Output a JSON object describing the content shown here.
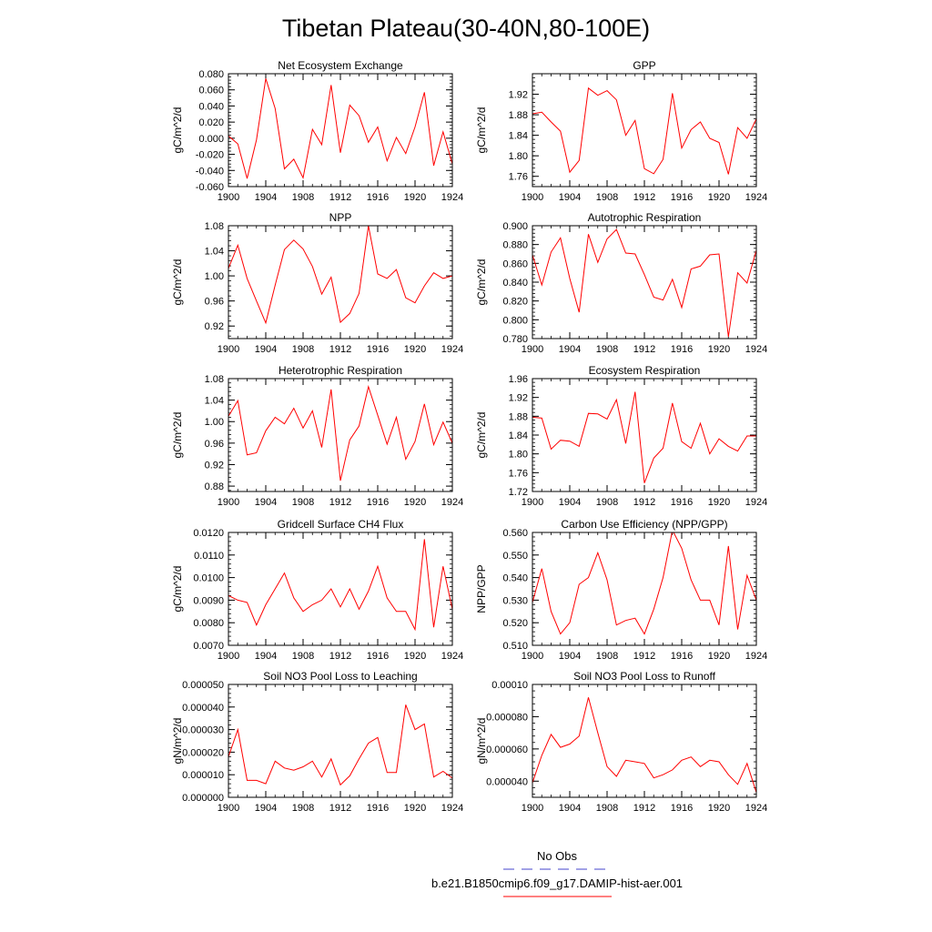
{
  "figure": {
    "title": "Tibetan Plateau(30-40N,80-100E)",
    "series_color": "#ff0000",
    "obs_color": "#4444cc",
    "legend": {
      "obs_label": "No Obs",
      "model_label": "b.e21.B1850cmip6.f09_g17.DAMIP-hist-aer.001"
    }
  },
  "chart_data": [
    {
      "type": "line",
      "title": "Net Ecosystem Exchange",
      "ylabel": "gC/m^2/d",
      "x": [
        1900,
        1901,
        1902,
        1903,
        1904,
        1905,
        1906,
        1907,
        1908,
        1909,
        1910,
        1911,
        1912,
        1913,
        1914,
        1915,
        1916,
        1917,
        1918,
        1919,
        1920,
        1921,
        1922,
        1923,
        1924
      ],
      "values": [
        0.003,
        -0.007,
        -0.05,
        -0.002,
        0.074,
        0.037,
        -0.038,
        -0.026,
        -0.049,
        0.011,
        -0.008,
        0.066,
        -0.018,
        0.041,
        0.028,
        -0.005,
        0.014,
        -0.028,
        0.001,
        -0.019,
        0.014,
        0.057,
        -0.034,
        0.008,
        -0.032
      ],
      "xlim": [
        1900,
        1924
      ],
      "ylim": [
        -0.06,
        0.08
      ],
      "xticks": [
        1900,
        1904,
        1908,
        1912,
        1916,
        1920,
        1924
      ],
      "yticks": [
        -0.06,
        -0.04,
        -0.02,
        0,
        0.02,
        0.04,
        0.06,
        0.08
      ],
      "yticklabels": [
        "-0.060",
        "-0.040",
        "-0.020",
        "0.000",
        "0.020",
        "0.040",
        "0.060",
        "0.080"
      ]
    },
    {
      "type": "line",
      "title": "GPP",
      "ylabel": "gC/m^2/d",
      "x": [
        1900,
        1901,
        1902,
        1903,
        1904,
        1905,
        1906,
        1907,
        1908,
        1909,
        1910,
        1911,
        1912,
        1913,
        1914,
        1915,
        1916,
        1917,
        1918,
        1919,
        1920,
        1921,
        1922,
        1923,
        1924
      ],
      "values": [
        1.882,
        1.885,
        1.866,
        1.848,
        1.768,
        1.791,
        1.932,
        1.918,
        1.927,
        1.909,
        1.84,
        1.869,
        1.775,
        1.765,
        1.793,
        1.922,
        1.815,
        1.851,
        1.866,
        1.834,
        1.826,
        1.764,
        1.855,
        1.834,
        1.872
      ],
      "xlim": [
        1900,
        1924
      ],
      "ylim": [
        1.74,
        1.96
      ],
      "xticks": [
        1900,
        1904,
        1908,
        1912,
        1916,
        1920,
        1924
      ],
      "yticks": [
        1.76,
        1.8,
        1.84,
        1.88,
        1.92
      ],
      "yticklabels": [
        "1.76",
        "1.80",
        "1.84",
        "1.88",
        "1.92"
      ]
    },
    {
      "type": "line",
      "title": "NPP",
      "ylabel": "gC/m^2/d",
      "x": [
        1900,
        1901,
        1902,
        1903,
        1904,
        1905,
        1906,
        1907,
        1908,
        1909,
        1910,
        1911,
        1912,
        1913,
        1914,
        1915,
        1916,
        1917,
        1918,
        1919,
        1920,
        1921,
        1922,
        1923,
        1924
      ],
      "values": [
        1.012,
        1.049,
        0.996,
        0.96,
        0.925,
        0.985,
        1.042,
        1.057,
        1.043,
        1.015,
        0.971,
        0.998,
        0.926,
        0.94,
        0.972,
        1.08,
        1.003,
        0.996,
        1.01,
        0.965,
        0.957,
        0.984,
        1.005,
        0.996,
        1.0
      ],
      "xlim": [
        1900,
        1924
      ],
      "ylim": [
        0.9,
        1.08
      ],
      "xticks": [
        1900,
        1904,
        1908,
        1912,
        1916,
        1920,
        1924
      ],
      "yticks": [
        0.92,
        0.96,
        1.0,
        1.04,
        1.08
      ],
      "yticklabels": [
        "0.92",
        "0.96",
        "1.00",
        "1.04",
        "1.08"
      ]
    },
    {
      "type": "line",
      "title": "Autotrophic Respiration",
      "ylabel": "gC/m^2/d",
      "x": [
        1900,
        1901,
        1902,
        1903,
        1904,
        1905,
        1906,
        1907,
        1908,
        1909,
        1910,
        1911,
        1912,
        1913,
        1914,
        1915,
        1916,
        1917,
        1918,
        1919,
        1920,
        1921,
        1922,
        1923,
        1924
      ],
      "values": [
        0.869,
        0.837,
        0.872,
        0.887,
        0.844,
        0.808,
        0.891,
        0.861,
        0.886,
        0.896,
        0.871,
        0.87,
        0.848,
        0.824,
        0.821,
        0.843,
        0.813,
        0.854,
        0.857,
        0.869,
        0.87,
        0.782,
        0.85,
        0.839,
        0.874
      ],
      "xlim": [
        1900,
        1924
      ],
      "ylim": [
        0.78,
        0.9
      ],
      "xticks": [
        1900,
        1904,
        1908,
        1912,
        1916,
        1920,
        1924
      ],
      "yticks": [
        0.78,
        0.8,
        0.82,
        0.84,
        0.86,
        0.88,
        0.9
      ],
      "yticklabels": [
        "0.780",
        "0.800",
        "0.820",
        "0.840",
        "0.860",
        "0.880",
        "0.900"
      ]
    },
    {
      "type": "line",
      "title": "Heterotrophic Respiration",
      "ylabel": "gC/m^2/d",
      "x": [
        1900,
        1901,
        1902,
        1903,
        1904,
        1905,
        1906,
        1907,
        1908,
        1909,
        1910,
        1911,
        1912,
        1913,
        1914,
        1915,
        1916,
        1917,
        1918,
        1919,
        1920,
        1921,
        1922,
        1923,
        1924
      ],
      "values": [
        1.01,
        1.039,
        0.938,
        0.942,
        0.983,
        1.008,
        0.996,
        1.025,
        0.988,
        1.02,
        0.952,
        1.06,
        0.89,
        0.966,
        0.992,
        1.065,
        1.012,
        0.958,
        1.008,
        0.93,
        0.963,
        1.033,
        0.957,
        0.999,
        0.96
      ],
      "xlim": [
        1900,
        1924
      ],
      "ylim": [
        0.87,
        1.08
      ],
      "xticks": [
        1900,
        1904,
        1908,
        1912,
        1916,
        1920,
        1924
      ],
      "yticks": [
        0.88,
        0.92,
        0.96,
        1.0,
        1.04,
        1.08
      ],
      "yticklabels": [
        "0.88",
        "0.92",
        "0.96",
        "1.00",
        "1.04",
        "1.08"
      ]
    },
    {
      "type": "line",
      "title": "Ecosystem Respiration",
      "ylabel": "gC/m^2/d",
      "x": [
        1900,
        1901,
        1902,
        1903,
        1904,
        1905,
        1906,
        1907,
        1908,
        1909,
        1910,
        1911,
        1912,
        1913,
        1914,
        1915,
        1916,
        1917,
        1918,
        1919,
        1920,
        1921,
        1922,
        1923,
        1924
      ],
      "values": [
        1.878,
        1.876,
        1.81,
        1.829,
        1.827,
        1.816,
        1.886,
        1.885,
        1.874,
        1.915,
        1.822,
        1.932,
        1.738,
        1.791,
        1.812,
        1.908,
        1.826,
        1.812,
        1.865,
        1.8,
        1.832,
        1.816,
        1.806,
        1.838,
        1.838
      ],
      "xlim": [
        1900,
        1924
      ],
      "ylim": [
        1.72,
        1.96
      ],
      "xticks": [
        1900,
        1904,
        1908,
        1912,
        1916,
        1920,
        1924
      ],
      "yticks": [
        1.72,
        1.76,
        1.8,
        1.84,
        1.88,
        1.92,
        1.96
      ],
      "yticklabels": [
        "1.72",
        "1.76",
        "1.80",
        "1.84",
        "1.88",
        "1.92",
        "1.96"
      ]
    },
    {
      "type": "line",
      "title": "Gridcell Surface CH4 Flux",
      "ylabel": "gC/m^2/d",
      "x": [
        1900,
        1901,
        1902,
        1903,
        1904,
        1905,
        1906,
        1907,
        1908,
        1909,
        1910,
        1911,
        1912,
        1913,
        1914,
        1915,
        1916,
        1917,
        1918,
        1919,
        1920,
        1921,
        1922,
        1923,
        1924
      ],
      "values": [
        0.0092,
        0.009,
        0.0089,
        0.0079,
        0.0088,
        0.0095,
        0.0102,
        0.0091,
        0.0085,
        0.0088,
        0.009,
        0.0095,
        0.0087,
        0.0095,
        0.0086,
        0.0094,
        0.0105,
        0.0091,
        0.0085,
        0.0085,
        0.0077,
        0.0117,
        0.0078,
        0.0105,
        0.0086
      ],
      "xlim": [
        1900,
        1924
      ],
      "ylim": [
        0.007,
        0.012
      ],
      "xticks": [
        1900,
        1904,
        1908,
        1912,
        1916,
        1920,
        1924
      ],
      "yticks": [
        0.007,
        0.008,
        0.009,
        0.01,
        0.011,
        0.012
      ],
      "yticklabels": [
        "0.0070",
        "0.0080",
        "0.0090",
        "0.0100",
        "0.0110",
        "0.0120"
      ]
    },
    {
      "type": "line",
      "title": "Carbon Use Efficiency (NPP/GPP)",
      "ylabel": "NPP/GPP",
      "x": [
        1900,
        1901,
        1902,
        1903,
        1904,
        1905,
        1906,
        1907,
        1908,
        1909,
        1910,
        1911,
        1912,
        1913,
        1914,
        1915,
        1916,
        1917,
        1918,
        1919,
        1920,
        1921,
        1922,
        1923,
        1924
      ],
      "values": [
        0.529,
        0.544,
        0.525,
        0.515,
        0.52,
        0.537,
        0.54,
        0.551,
        0.539,
        0.519,
        0.521,
        0.522,
        0.515,
        0.526,
        0.54,
        0.561,
        0.553,
        0.539,
        0.53,
        0.53,
        0.519,
        0.554,
        0.517,
        0.541,
        0.53
      ],
      "xlim": [
        1900,
        1924
      ],
      "ylim": [
        0.51,
        0.56
      ],
      "xticks": [
        1900,
        1904,
        1908,
        1912,
        1916,
        1920,
        1924
      ],
      "yticks": [
        0.51,
        0.52,
        0.53,
        0.54,
        0.55,
        0.56
      ],
      "yticklabels": [
        "0.510",
        "0.520",
        "0.530",
        "0.540",
        "0.550",
        "0.560"
      ]
    },
    {
      "type": "line",
      "title": "Soil NO3 Pool Loss to Leaching",
      "ylabel": "gN/m^2/d",
      "x": [
        1900,
        1901,
        1902,
        1903,
        1904,
        1905,
        1906,
        1907,
        1908,
        1909,
        1910,
        1911,
        1912,
        1913,
        1914,
        1915,
        1916,
        1917,
        1918,
        1919,
        1920,
        1921,
        1922,
        1923,
        1924
      ],
      "values": [
        1.8e-05,
        3e-05,
        7.5e-06,
        7.5e-06,
        6e-06,
        1.6e-05,
        1.3e-05,
        1.2e-05,
        1.35e-05,
        1.6e-05,
        9e-06,
        1.7e-05,
        5.5e-06,
        9.5e-06,
        1.7e-05,
        2.4e-05,
        2.65e-05,
        1.1e-05,
        1.1e-05,
        4.1e-05,
        3e-05,
        3.25e-05,
        9e-06,
        1.15e-05,
        8.5e-06
      ],
      "xlim": [
        1900,
        1924
      ],
      "ylim": [
        0,
        5e-05
      ],
      "xticks": [
        1900,
        1904,
        1908,
        1912,
        1916,
        1920,
        1924
      ],
      "yticks": [
        0,
        1e-05,
        2e-05,
        3e-05,
        4e-05,
        5e-05
      ],
      "yticklabels": [
        "0.000000",
        "0.000010",
        "0.000020",
        "0.000030",
        "0.000040",
        "0.000050"
      ]
    },
    {
      "type": "line",
      "title": "Soil NO3 Pool Loss to Runoff",
      "ylabel": "gN/m^2/d",
      "x": [
        1900,
        1901,
        1902,
        1903,
        1904,
        1905,
        1906,
        1907,
        1908,
        1909,
        1910,
        1911,
        1912,
        1913,
        1914,
        1915,
        1916,
        1917,
        1918,
        1919,
        1920,
        1921,
        1922,
        1923,
        1924
      ],
      "values": [
        3.9e-05,
        5.6e-05,
        6.9e-05,
        6.1e-05,
        6.3e-05,
        6.8e-05,
        9.2e-05,
        7e-05,
        4.9e-05,
        4.3e-05,
        5.3e-05,
        5.2e-05,
        5.1e-05,
        4.2e-05,
        4.4e-05,
        4.7e-05,
        5.3e-05,
        5.5e-05,
        4.9e-05,
        5.3e-05,
        5.2e-05,
        4.4e-05,
        3.8e-05,
        5.1e-05,
        3.3e-05
      ],
      "xlim": [
        1900,
        1924
      ],
      "ylim": [
        3e-05,
        0.0001
      ],
      "xticks": [
        1900,
        1904,
        1908,
        1912,
        1916,
        1920,
        1924
      ],
      "yticks": [
        4e-05,
        6e-05,
        8e-05,
        0.0001
      ],
      "yticklabels": [
        "0.000040",
        "0.000060",
        "0.000080",
        "0.00010"
      ]
    }
  ]
}
